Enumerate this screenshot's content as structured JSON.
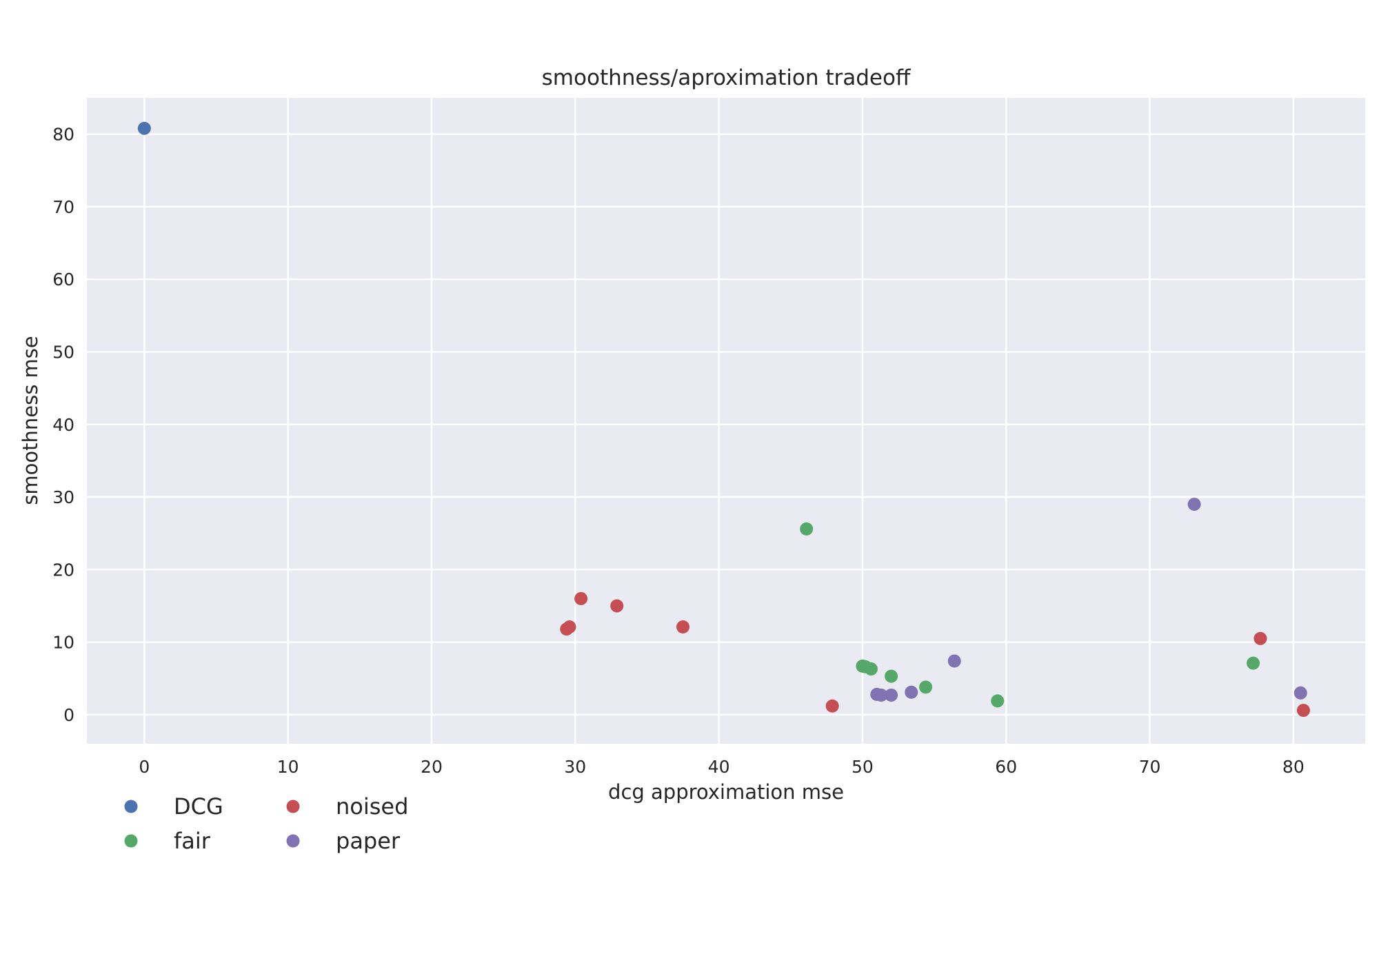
{
  "chart_data": {
    "type": "scatter",
    "title": "smoothness/aproximation tradeoff",
    "xlabel": "dcg approximation mse",
    "ylabel": "smoothness mse",
    "xlim": [
      -4,
      85
    ],
    "ylim": [
      -4,
      85
    ],
    "xticks": [
      0,
      10,
      20,
      30,
      40,
      50,
      60,
      70,
      80
    ],
    "yticks": [
      0,
      10,
      20,
      30,
      40,
      50,
      60,
      70,
      80
    ],
    "grid": true,
    "legend": {
      "placement": "bottom-left",
      "columns": 2
    },
    "series": [
      {
        "name": "DCG",
        "color": "#4c72b0",
        "points": [
          [
            0.0,
            80.8
          ]
        ]
      },
      {
        "name": "fair",
        "color": "#55a868",
        "points": [
          [
            46.1,
            25.6
          ],
          [
            50.0,
            6.7
          ],
          [
            50.2,
            6.6
          ],
          [
            50.6,
            6.3
          ],
          [
            52.0,
            5.3
          ],
          [
            54.4,
            3.8
          ],
          [
            59.4,
            1.9
          ],
          [
            77.2,
            7.1
          ]
        ]
      },
      {
        "name": "noised",
        "color": "#c44e52",
        "points": [
          [
            29.4,
            11.8
          ],
          [
            29.6,
            12.1
          ],
          [
            30.4,
            16.0
          ],
          [
            32.9,
            15.0
          ],
          [
            37.5,
            12.1
          ],
          [
            47.9,
            1.2
          ],
          [
            77.7,
            10.5
          ],
          [
            80.7,
            0.6
          ]
        ]
      },
      {
        "name": "paper",
        "color": "#8172b2",
        "points": [
          [
            51.0,
            2.8
          ],
          [
            51.3,
            2.7
          ],
          [
            52.0,
            2.7
          ],
          [
            53.4,
            3.1
          ],
          [
            56.4,
            7.4
          ],
          [
            73.1,
            29.0
          ],
          [
            80.5,
            3.0
          ]
        ]
      }
    ]
  }
}
